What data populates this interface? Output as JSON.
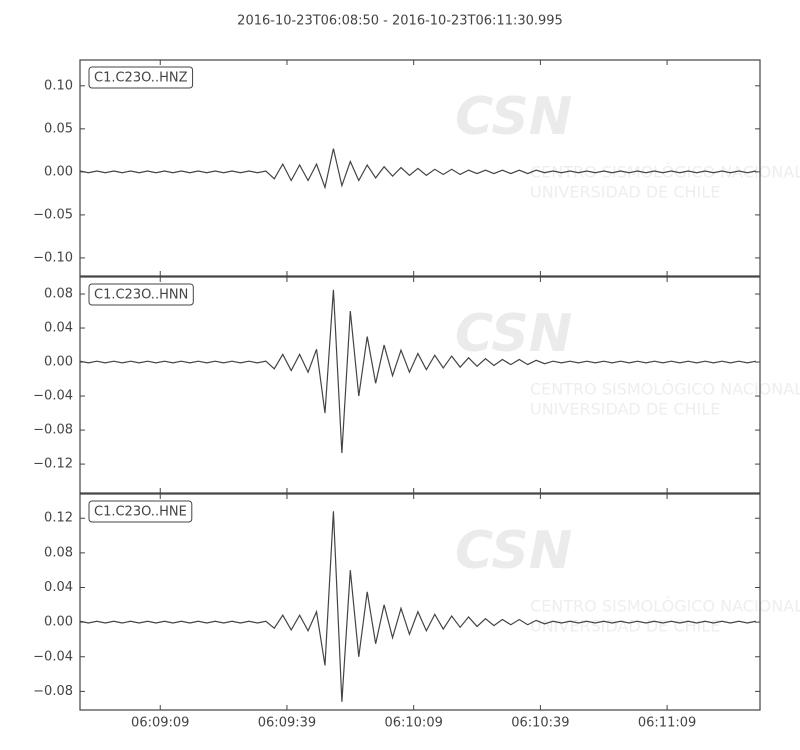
{
  "chart_data": [
    {
      "type": "line",
      "title": "2016-10-23T06:08:50  -  2016-10-23T06:11:30.995",
      "label": "C1.C23O..HNZ",
      "color": "#444444",
      "ylim": [
        -0.121,
        0.13
      ],
      "yticks": [
        {
          "value": -0.1,
          "label": "−0.10"
        },
        {
          "value": -0.05,
          "label": "−0.05"
        },
        {
          "value": 0,
          "label": "0.00"
        },
        {
          "value": 0.05,
          "label": "0.05"
        },
        {
          "value": 0.1,
          "label": "0.10"
        }
      ],
      "x": [
        0,
        2,
        4,
        6,
        8,
        10,
        12,
        14,
        16,
        18,
        20,
        22,
        24,
        26,
        28,
        30,
        32,
        34,
        36,
        38,
        40,
        42,
        44,
        46,
        48,
        50,
        52,
        54,
        56,
        58,
        60,
        62,
        64,
        66,
        68,
        70,
        72,
        74,
        76,
        78,
        80,
        82,
        84,
        86,
        88,
        90,
        92,
        94,
        96,
        98,
        100,
        102,
        104,
        106,
        108,
        110,
        112,
        114,
        116,
        118,
        120,
        122,
        124,
        126,
        128,
        130,
        132,
        134,
        136,
        138,
        140,
        142,
        144,
        146,
        148,
        150,
        152,
        154,
        156,
        158,
        160
      ],
      "values": [
        0.001,
        -0.001,
        0.001,
        -0.001,
        0.001,
        -0.001,
        0.001,
        -0.001,
        0.001,
        -0.001,
        0.001,
        -0.001,
        0.001,
        -0.001,
        0.001,
        -0.001,
        0.001,
        -0.001,
        0.001,
        -0.001,
        0.001,
        -0.001,
        0.001,
        -0.008,
        0.009,
        -0.01,
        0.008,
        -0.01,
        0.009,
        -0.018,
        0.027,
        -0.016,
        0.012,
        -0.01,
        0.008,
        -0.007,
        0.006,
        -0.005,
        0.005,
        -0.004,
        0.004,
        -0.004,
        0.003,
        -0.003,
        0.003,
        -0.003,
        0.002,
        -0.002,
        0.002,
        -0.002,
        0.002,
        -0.002,
        0.002,
        -0.002,
        0.002,
        -0.001,
        0.001,
        -0.001,
        0.001,
        -0.001,
        0.001,
        -0.001,
        0.001,
        -0.001,
        0.001,
        -0.001,
        0.001,
        -0.001,
        0.001,
        -0.001,
        0.001,
        -0.001,
        0.001,
        -0.001,
        0.001,
        -0.001,
        0.001,
        -0.001,
        0.001,
        -0.001,
        0.001
      ]
    },
    {
      "type": "line",
      "label": "C1.C23O..HNN",
      "color": "#444444",
      "ylim": [
        -0.154,
        0.1
      ],
      "yticks": [
        {
          "value": -0.12,
          "label": "−0.12"
        },
        {
          "value": -0.08,
          "label": "−0.08"
        },
        {
          "value": -0.04,
          "label": "−0.04"
        },
        {
          "value": 0,
          "label": "0.00"
        },
        {
          "value": 0.04,
          "label": "0.04"
        },
        {
          "value": 0.08,
          "label": "0.08"
        }
      ],
      "x": [
        0,
        2,
        4,
        6,
        8,
        10,
        12,
        14,
        16,
        18,
        20,
        22,
        24,
        26,
        28,
        30,
        32,
        34,
        36,
        38,
        40,
        42,
        44,
        46,
        48,
        50,
        52,
        54,
        56,
        58,
        60,
        62,
        64,
        66,
        68,
        70,
        72,
        74,
        76,
        78,
        80,
        82,
        84,
        86,
        88,
        90,
        92,
        94,
        96,
        98,
        100,
        102,
        104,
        106,
        108,
        110,
        112,
        114,
        116,
        118,
        120,
        122,
        124,
        126,
        128,
        130,
        132,
        134,
        136,
        138,
        140,
        142,
        144,
        146,
        148,
        150,
        152,
        154,
        156,
        158,
        160
      ],
      "values": [
        0.001,
        -0.001,
        0.001,
        -0.001,
        0.001,
        -0.001,
        0.001,
        -0.001,
        0.001,
        -0.001,
        0.001,
        -0.001,
        0.001,
        -0.001,
        0.001,
        -0.001,
        0.001,
        -0.001,
        0.001,
        -0.001,
        0.001,
        -0.001,
        0.001,
        -0.008,
        0.009,
        -0.01,
        0.009,
        -0.012,
        0.015,
        -0.06,
        0.085,
        -0.107,
        0.06,
        -0.04,
        0.03,
        -0.025,
        0.02,
        -0.016,
        0.014,
        -0.012,
        0.01,
        -0.009,
        0.008,
        -0.007,
        0.007,
        -0.006,
        0.005,
        -0.005,
        0.004,
        -0.004,
        0.003,
        -0.003,
        0.003,
        -0.003,
        0.002,
        -0.002,
        0.001,
        -0.001,
        0.001,
        -0.001,
        0.001,
        -0.001,
        0.001,
        -0.001,
        0.001,
        -0.001,
        0.001,
        -0.001,
        0.001,
        -0.001,
        0.001,
        -0.001,
        0.001,
        -0.001,
        0.001,
        -0.001,
        0.001,
        -0.001,
        0.001,
        -0.001,
        0.001
      ]
    },
    {
      "type": "line",
      "label": "C1.C23O..HNE",
      "color": "#444444",
      "ylim": [
        -0.1015,
        0.148
      ],
      "yticks": [
        {
          "value": -0.08,
          "label": "−0.08"
        },
        {
          "value": -0.04,
          "label": "−0.04"
        },
        {
          "value": 0,
          "label": "0.00"
        },
        {
          "value": 0.04,
          "label": "0.04"
        },
        {
          "value": 0.08,
          "label": "0.08"
        },
        {
          "value": 0.12,
          "label": "0.12"
        }
      ],
      "xlim": [
        0,
        160.995
      ],
      "xticks": [
        {
          "value": 19,
          "label": "06:09:09"
        },
        {
          "value": 49,
          "label": "06:09:39"
        },
        {
          "value": 79,
          "label": "06:10:09"
        },
        {
          "value": 109,
          "label": "06:10:39"
        },
        {
          "value": 139,
          "label": "06:11:09"
        }
      ],
      "x": [
        0,
        2,
        4,
        6,
        8,
        10,
        12,
        14,
        16,
        18,
        20,
        22,
        24,
        26,
        28,
        30,
        32,
        34,
        36,
        38,
        40,
        42,
        44,
        46,
        48,
        50,
        52,
        54,
        56,
        58,
        60,
        62,
        64,
        66,
        68,
        70,
        72,
        74,
        76,
        78,
        80,
        82,
        84,
        86,
        88,
        90,
        92,
        94,
        96,
        98,
        100,
        102,
        104,
        106,
        108,
        110,
        112,
        114,
        116,
        118,
        120,
        122,
        124,
        126,
        128,
        130,
        132,
        134,
        136,
        138,
        140,
        142,
        144,
        146,
        148,
        150,
        152,
        154,
        156,
        158,
        160
      ],
      "values": [
        0.001,
        -0.001,
        0.001,
        -0.001,
        0.001,
        -0.001,
        0.001,
        -0.001,
        0.001,
        -0.001,
        0.001,
        -0.001,
        0.001,
        -0.001,
        0.001,
        -0.001,
        0.001,
        -0.001,
        0.001,
        -0.001,
        0.001,
        -0.001,
        0.001,
        -0.007,
        0.008,
        -0.009,
        0.008,
        -0.01,
        0.012,
        -0.05,
        0.128,
        -0.092,
        0.06,
        -0.04,
        0.035,
        -0.025,
        0.02,
        -0.018,
        0.016,
        -0.014,
        0.012,
        -0.01,
        0.009,
        -0.008,
        0.007,
        -0.006,
        0.006,
        -0.005,
        0.004,
        -0.004,
        0.003,
        -0.003,
        0.003,
        -0.003,
        0.002,
        -0.002,
        0.001,
        -0.001,
        0.001,
        -0.001,
        0.001,
        -0.001,
        0.001,
        -0.001,
        0.001,
        -0.001,
        0.001,
        -0.001,
        0.001,
        -0.001,
        0.001,
        -0.001,
        0.001,
        -0.001,
        0.001,
        -0.001,
        0.001,
        -0.001,
        0.001,
        -0.001,
        0.001
      ]
    }
  ],
  "watermark": {
    "logo": "CSN",
    "line1": "CENTRO SISMOLÓGICO NACIONAL",
    "line2": "UNIVERSIDAD DE CHILE"
  }
}
